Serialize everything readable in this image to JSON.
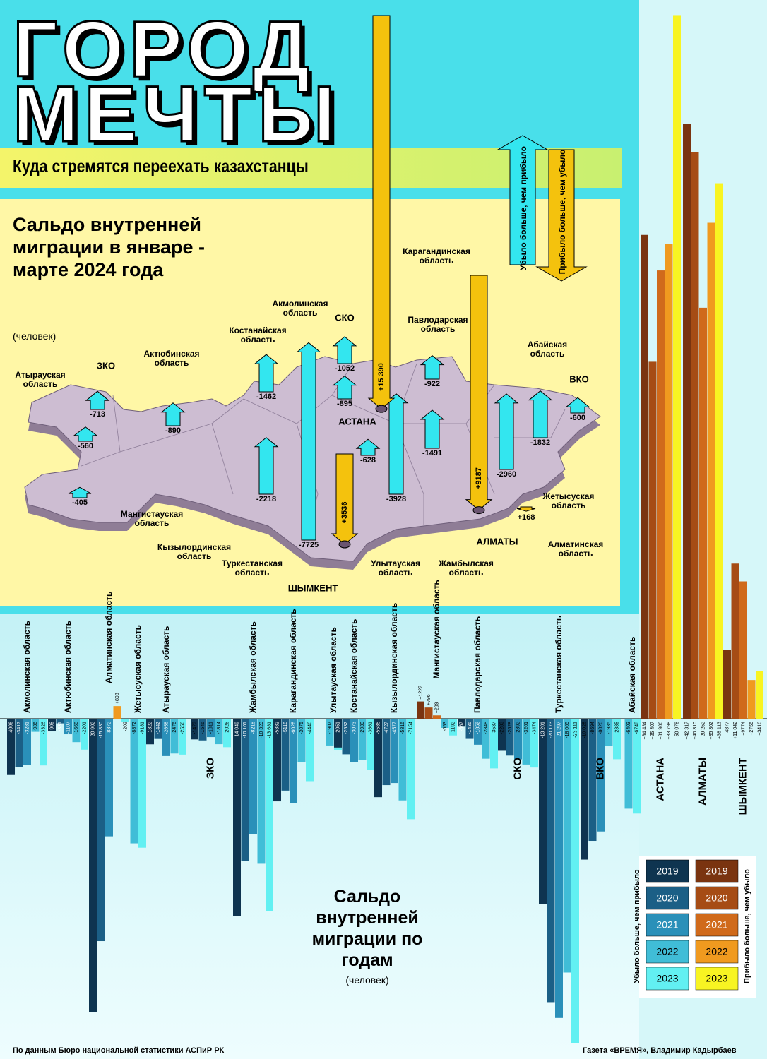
{
  "header": {
    "title_line1": "ГОРОД",
    "title_line2": "МЕЧТЫ",
    "subtitle": "Куда стремятся переехать казахстанцы"
  },
  "arrow_legend": {
    "loss": "Убыло больше, чем прибыло",
    "gain": "Прибыло больше, чем убыло"
  },
  "chart_data": [
    {
      "type": "arrow-map",
      "title": "Сальдо внутренней миграции в январе - марте 2024 года",
      "subtitle": "(человек)",
      "categories": [
        "Атырауская область",
        "ЗКО",
        "Актюбинская область",
        "Мангистауская область",
        "Костанайская область",
        "Кызылординская область",
        "Туркестанская область",
        "Акмолинская область",
        "СКО",
        "Улытауская область",
        "Жамбылская область",
        "Карагандинская область",
        "Павлодарская область",
        "Жетысуская область",
        "Абайская область",
        "ВКО",
        "Алматинская область",
        "АСТАНА",
        "ШЫМКЕНТ",
        "АЛМАТЫ"
      ],
      "values": [
        -560,
        -713,
        -890,
        -405,
        -1462,
        -2218,
        -7725,
        -895,
        -1052,
        -628,
        -3928,
        -1491,
        -922,
        -2960,
        -1832,
        -600,
        168,
        15390,
        3536,
        9187
      ],
      "value_labels": [
        "-560",
        "-713",
        "-890",
        "-405",
        "-1462",
        "-2218",
        "-7725",
        "-895",
        "-1052",
        "-628",
        "-3928",
        "-1491",
        "-922",
        "-2960",
        "-1832",
        "-600",
        "+168",
        "+15 390",
        "+3536",
        "+9187"
      ],
      "negative_color": "#33e6ef",
      "positive_color": "#f4c20d"
    },
    {
      "type": "grouped-bar",
      "title": "Сальдо внутренней миграции по годам",
      "subtitle": "(человек)",
      "categories": [
        "Акмолинская область",
        "Актюбинская область",
        "Алматинская область",
        "Жетысуская область",
        "Атырауская область",
        "ЗКО",
        "Жамбылская область",
        "Карагандинская область",
        "Улытауская область",
        "Костанайская область",
        "Кызылординская область",
        "Мангистауская область",
        "Павлодарская область",
        "СКО",
        "Туркестанская область",
        "ВКО",
        "Абайская область",
        "АСТАНА",
        "АЛМАТЫ",
        "ШЫМКЕНТ"
      ],
      "series": [
        {
          "name": "2019",
          "color": "#0e3450",
          "positive_color": "#7a3410",
          "values": [
            -4006,
            -905,
            -20902,
            null,
            -1822,
            -1473,
            -14049,
            -5882,
            null,
            -2051,
            -5586,
            1227,
            -567,
            -2283,
            -13201,
            -10028,
            null,
            34434,
            42317,
            4877
          ],
          "value_labels": [
            "-4006",
            "-905",
            "-20 902",
            null,
            "-1822",
            "-1473",
            "-14 049",
            "-5882",
            null,
            "-2051",
            "-5586",
            "+1227",
            "-567",
            "-2283",
            "-13 201",
            "-10 028",
            null,
            "+34 434",
            "+42 317",
            "+4877"
          ]
        },
        {
          "name": "2020",
          "color": "#1b5f86",
          "positive_color": "#a64c15",
          "values": [
            -3417,
            -331,
            -15830,
            null,
            -1442,
            -1546,
            -10101,
            -5118,
            null,
            -2532,
            -4727,
            796,
            -1436,
            -2628,
            -20173,
            -8694,
            null,
            25407,
            40310,
            11042
          ],
          "value_labels": [
            "-3417",
            "-331",
            "-15 830",
            null,
            "-1442",
            "-1546",
            "-10 101",
            "-5118",
            null,
            "-2532",
            "-4727",
            "+796",
            "-1436",
            "-2628",
            "-20 173",
            "-8694",
            null,
            "+25 407",
            "+40 310",
            "+11 042"
          ]
        },
        {
          "name": "2021",
          "color": "#2a90b9",
          "positive_color": "#d06a1b",
          "values": [
            -3281,
            -1107,
            -8372,
            null,
            -2658,
            -1311,
            -8218,
            -6028,
            null,
            -3073,
            -4577,
            239,
            -1852,
            -2892,
            -21297,
            -8026,
            null,
            31906,
            29252,
            9774
          ],
          "value_labels": [
            "-3281",
            "-1107",
            "-8372",
            null,
            "-2658",
            "-1311",
            "-8218",
            "-6028",
            null,
            "-3073",
            "-4577",
            "+239",
            "-1852",
            "-2892",
            "-21 297",
            "-8026",
            null,
            "+31 906",
            "+29 252",
            "+9774"
          ]
        },
        {
          "name": "2022",
          "color": "#40bdd7",
          "positive_color": "#f09a1f",
          "values": [
            -936,
            -1668,
            898,
            -8872,
            -2476,
            -1814,
            -10323,
            -3075,
            -1907,
            -2930,
            -5816,
            -653,
            -2848,
            -3261,
            -18065,
            -1935,
            -6403,
            33798,
            35302,
            2756
          ],
          "value_labels": [
            "-936",
            "-1668",
            "+898",
            "-8872",
            "-2476",
            "-1814",
            "-10 323",
            "-3075",
            "-1907",
            "-2930",
            "-5816",
            "-653",
            "-2848",
            "-3261",
            "-18 065",
            "-1935",
            "-6403",
            "+33 798",
            "+35 302",
            "+2756"
          ]
        },
        {
          "name": "2023",
          "color": "#62f0f2",
          "positive_color": "#f8f422",
          "values": [
            -3326,
            -2201,
            -202,
            -9181,
            -2556,
            -2026,
            -13681,
            -4446,
            -2227,
            -3661,
            -7154,
            -1192,
            -3537,
            -3474,
            -23111,
            -2885,
            -6748,
            50078,
            38113,
            3416
          ],
          "value_labels": [
            "-3326",
            "-2201",
            "-202",
            "-9181",
            "-2556",
            "-2026",
            "-13 681",
            "-4446",
            "-2227",
            "-3661",
            "-7154",
            "-1192",
            "-3537",
            "-3474",
            "-23 111",
            "-2885",
            "-6748",
            "+50 078",
            "+38 113",
            "+3416"
          ]
        }
      ]
    }
  ],
  "footer": {
    "source": "По данным Бюро национальной статистики АСПиР РК",
    "credit": "Газета «ВРЕМЯ», Владимир Кадырбаев"
  }
}
